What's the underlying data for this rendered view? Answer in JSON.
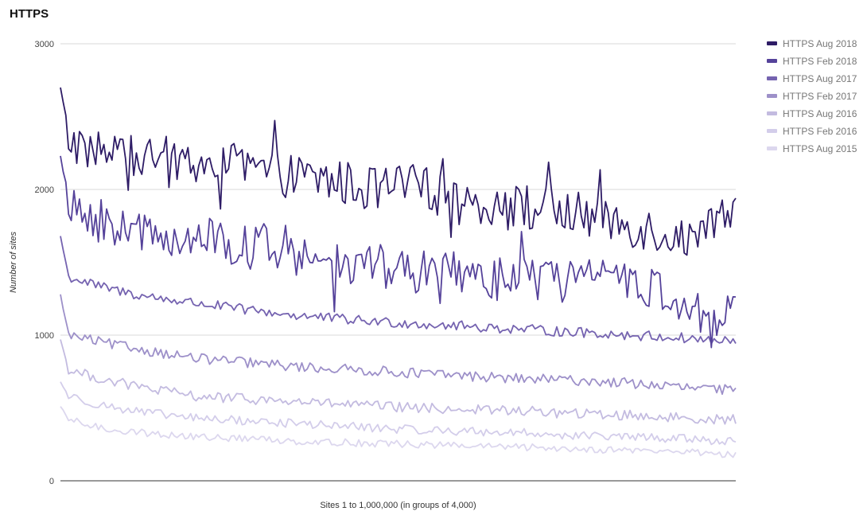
{
  "chart_data": {
    "type": "line",
    "title": "HTTPS",
    "xlabel": "Sites 1 to 1,000,000 (in groups of 4,000)",
    "ylabel": "Number of sites",
    "ylim": [
      0,
      3000
    ],
    "yticks": [
      "0",
      "1000",
      "2000",
      "3000"
    ],
    "x_points": 250,
    "legend_position": "right",
    "series": [
      {
        "name": "HTTPS Aug 2018",
        "color": "#2e1c66",
        "keypoints": [
          [
            0,
            2700
          ],
          [
            3,
            2340
          ],
          [
            15,
            2260
          ],
          [
            25,
            2220
          ],
          [
            40,
            2210
          ],
          [
            60,
            2170
          ],
          [
            80,
            2100
          ],
          [
            100,
            2060
          ],
          [
            115,
            2000
          ],
          [
            130,
            2020
          ],
          [
            150,
            1940
          ],
          [
            165,
            1880
          ],
          [
            180,
            1860
          ],
          [
            200,
            1800
          ],
          [
            220,
            1720
          ],
          [
            235,
            1640
          ],
          [
            249,
            1840
          ]
        ],
        "noise": 160
      },
      {
        "name": "HTTPS Feb 2018",
        "color": "#55429a",
        "keypoints": [
          [
            0,
            2230
          ],
          [
            3,
            1860
          ],
          [
            15,
            1780
          ],
          [
            30,
            1700
          ],
          [
            50,
            1670
          ],
          [
            70,
            1600
          ],
          [
            90,
            1540
          ],
          [
            110,
            1480
          ],
          [
            130,
            1440
          ],
          [
            150,
            1420
          ],
          [
            170,
            1380
          ],
          [
            190,
            1370
          ],
          [
            210,
            1370
          ],
          [
            230,
            1230
          ],
          [
            240,
            1000
          ],
          [
            249,
            1200
          ]
        ],
        "noise": 150
      },
      {
        "name": "HTTPS Aug 2017",
        "color": "#7563b0",
        "keypoints": [
          [
            0,
            1680
          ],
          [
            3,
            1400
          ],
          [
            15,
            1330
          ],
          [
            30,
            1270
          ],
          [
            50,
            1220
          ],
          [
            70,
            1170
          ],
          [
            90,
            1130
          ],
          [
            110,
            1100
          ],
          [
            130,
            1080
          ],
          [
            150,
            1060
          ],
          [
            170,
            1040
          ],
          [
            190,
            1020
          ],
          [
            210,
            1000
          ],
          [
            230,
            980
          ],
          [
            249,
            950
          ]
        ],
        "noise": 35
      },
      {
        "name": "HTTPS Feb 2017",
        "color": "#9d90c9",
        "keypoints": [
          [
            0,
            1280
          ],
          [
            3,
            1000
          ],
          [
            15,
            950
          ],
          [
            30,
            900
          ],
          [
            50,
            840
          ],
          [
            70,
            810
          ],
          [
            90,
            780
          ],
          [
            110,
            760
          ],
          [
            130,
            740
          ],
          [
            150,
            720
          ],
          [
            170,
            700
          ],
          [
            190,
            690
          ],
          [
            210,
            670
          ],
          [
            230,
            640
          ],
          [
            249,
            620
          ]
        ],
        "noise": 35
      },
      {
        "name": "HTTPS Aug 2016",
        "color": "#c3bbe0",
        "keypoints": [
          [
            0,
            970
          ],
          [
            3,
            760
          ],
          [
            15,
            700
          ],
          [
            30,
            640
          ],
          [
            50,
            580
          ],
          [
            70,
            560
          ],
          [
            90,
            540
          ],
          [
            110,
            520
          ],
          [
            130,
            500
          ],
          [
            150,
            490
          ],
          [
            170,
            480
          ],
          [
            190,
            460
          ],
          [
            210,
            450
          ],
          [
            230,
            430
          ],
          [
            249,
            420
          ]
        ],
        "noise": 35
      },
      {
        "name": "HTTPS Feb 2016",
        "color": "#d3cdea",
        "keypoints": [
          [
            0,
            680
          ],
          [
            3,
            580
          ],
          [
            15,
            520
          ],
          [
            30,
            470
          ],
          [
            50,
            430
          ],
          [
            70,
            410
          ],
          [
            90,
            390
          ],
          [
            110,
            370
          ],
          [
            130,
            350
          ],
          [
            150,
            340
          ],
          [
            170,
            330
          ],
          [
            190,
            310
          ],
          [
            210,
            300
          ],
          [
            230,
            290
          ],
          [
            249,
            270
          ]
        ],
        "noise": 30
      },
      {
        "name": "HTTPS Aug 2015",
        "color": "#dcd7ee",
        "keypoints": [
          [
            0,
            510
          ],
          [
            3,
            420
          ],
          [
            15,
            360
          ],
          [
            30,
            330
          ],
          [
            50,
            300
          ],
          [
            70,
            290
          ],
          [
            90,
            270
          ],
          [
            110,
            260
          ],
          [
            130,
            250
          ],
          [
            150,
            240
          ],
          [
            170,
            230
          ],
          [
            190,
            220
          ],
          [
            210,
            210
          ],
          [
            230,
            200
          ],
          [
            249,
            180
          ]
        ],
        "noise": 25
      }
    ]
  }
}
